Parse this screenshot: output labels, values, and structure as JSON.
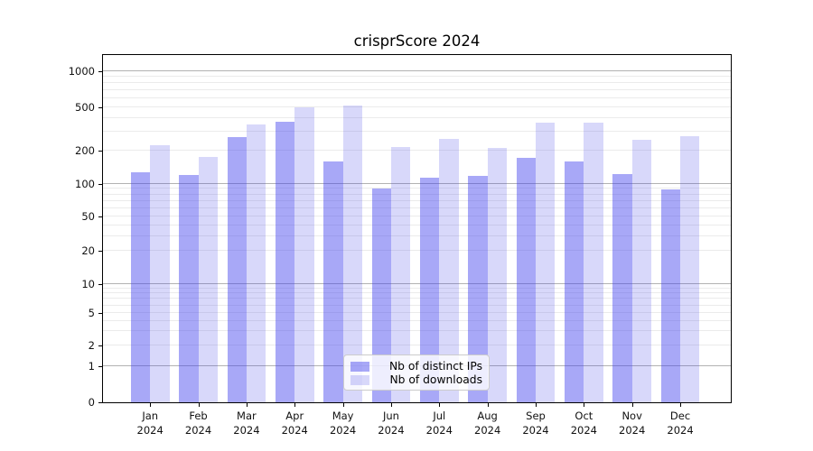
{
  "chart_data": {
    "type": "bar",
    "title": "crisprScore 2024",
    "categories": [
      "Jan 2024",
      "Feb 2024",
      "Mar 2024",
      "Apr 2024",
      "May 2024",
      "Jun 2024",
      "Jul 2024",
      "Aug 2024",
      "Sep 2024",
      "Oct 2024",
      "Nov 2024",
      "Dec 2024"
    ],
    "months": [
      "Jan",
      "Feb",
      "Mar",
      "Apr",
      "May",
      "Jun",
      "Jul",
      "Aug",
      "Sep",
      "Oct",
      "Nov",
      "Dec"
    ],
    "year": "2024",
    "series": [
      {
        "name": "Nb of distinct IPs",
        "color": "#a7a7f8",
        "fill": "rgba(62,62,237,0.45)",
        "values": [
          127,
          121,
          267,
          368,
          160,
          91,
          113,
          118,
          172,
          160,
          123,
          88
        ]
      },
      {
        "name": "Nb of downloads",
        "color": "#d8d8fa",
        "fill": "rgba(60,60,230,0.2)",
        "values": [
          224,
          177,
          352,
          497,
          515,
          217,
          257,
          215,
          362,
          360,
          255,
          272
        ]
      }
    ],
    "yticks": [
      0,
      1,
      2,
      5,
      10,
      20,
      50,
      100,
      200,
      500,
      1000
    ],
    "ylabel": "",
    "xlabel": "",
    "ylim": [
      0,
      1300
    ],
    "yscale": "log-like (0,1,2,5,10,20,50,100,200,500,1000)",
    "grid": "on",
    "grid_major_color": "#b2b2b2",
    "grid_minor_color": "#ebebeb",
    "legend_position": "lower center",
    "spine_color": "#000000"
  }
}
